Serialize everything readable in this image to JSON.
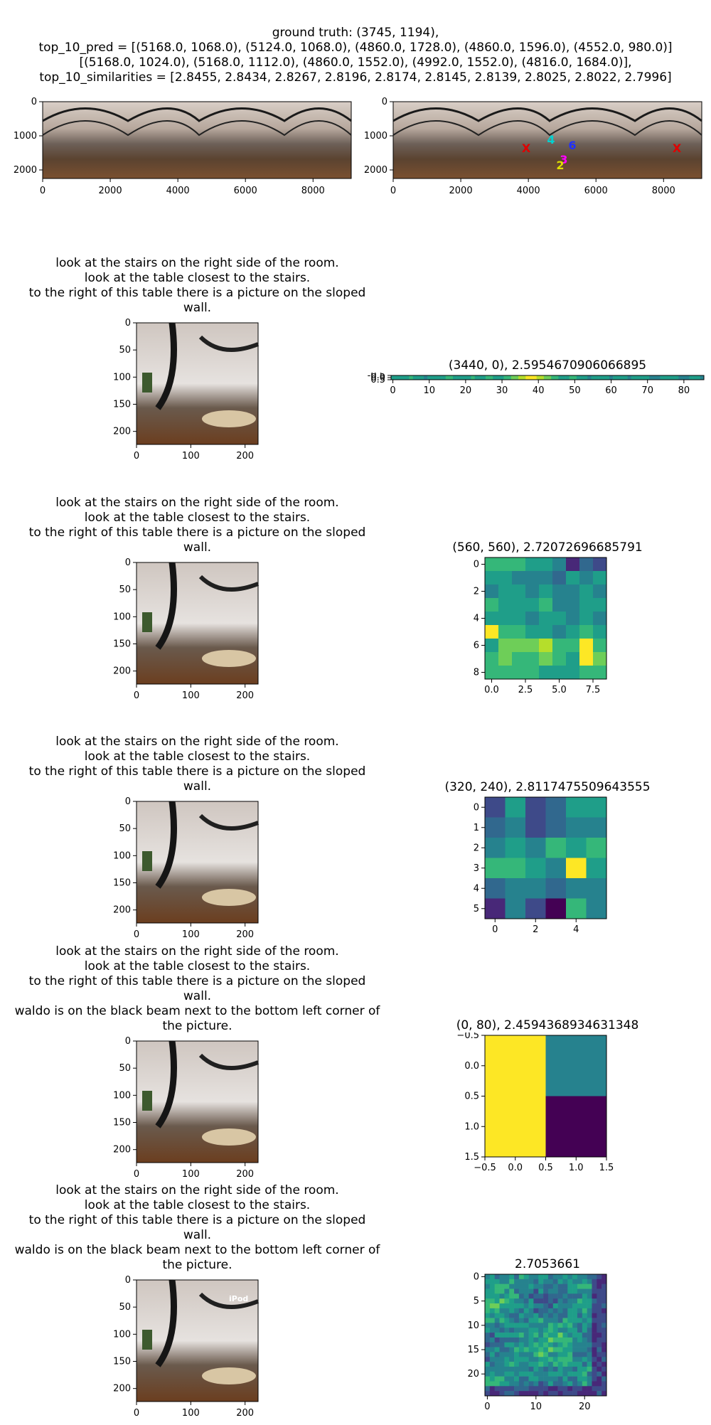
{
  "header": {
    "lines": [
      "ground truth: (3745, 1194),",
      "top_10_pred = [(5168.0, 1068.0), (5124.0, 1068.0), (4860.0, 1728.0), (4860.0, 1596.0), (4552.0, 980.0)]",
      "[(5168.0, 1024.0), (5168.0, 1112.0), (4860.0, 1552.0), (4992.0, 1552.0), (4816.0, 1684.0)],",
      "top_10_similarities = [2.8455, 2.8434, 2.8267, 2.8196, 2.8174, 2.8145, 2.8139, 2.8025, 2.8022, 2.7996]"
    ]
  },
  "panorama_axes": {
    "x_ticks": [
      "0",
      "2000",
      "4000",
      "6000",
      "8000"
    ],
    "y_ticks": [
      "0",
      "1000",
      "2000"
    ],
    "markers": [
      {
        "label": "X",
        "color": "#e00000"
      },
      {
        "label": "4",
        "color": "#00d0d0"
      },
      {
        "label": "6",
        "color": "#2030ff"
      },
      {
        "label": "3",
        "color": "#ff00ff"
      },
      {
        "label": "2",
        "color": "#e0e000"
      },
      {
        "label": "X",
        "color": "#e00000"
      }
    ]
  },
  "rows": [
    {
      "instructions": [
        "look at the stairs on the right side of the room.",
        "look at the table closest to the stairs.",
        "to the right of this table there is a picture on the sloped",
        "wall."
      ],
      "crop_ticks_x": [
        "0",
        "100",
        "200"
      ],
      "crop_ticks_y": [
        "0",
        "50",
        "100",
        "150",
        "200"
      ],
      "crop_label": ""
    },
    {
      "instructions": [
        "look at the stairs on the right side of the room.",
        "look at the table closest to the stairs.",
        "to the right of this table there is a picture on the sloped",
        "wall."
      ],
      "crop_ticks_x": [
        "0",
        "100",
        "200"
      ],
      "crop_ticks_y": [
        "0",
        "50",
        "100",
        "150",
        "200"
      ],
      "crop_label": ""
    },
    {
      "instructions": [
        "look at the stairs on the right side of the room.",
        "look at the table closest to the stairs.",
        "to the right of this table there is a picture on the sloped",
        "wall."
      ],
      "crop_ticks_x": [
        "0",
        "100",
        "200"
      ],
      "crop_ticks_y": [
        "0",
        "50",
        "100",
        "150",
        "200"
      ],
      "crop_label": ""
    },
    {
      "instructions": [
        "look at the stairs on the right side of the room.",
        "look at the table closest to the stairs.",
        "to the right of this table there is a picture on the sloped",
        "wall.",
        "waldo is on the black beam next to the bottom left corner of",
        "the picture."
      ],
      "crop_ticks_x": [
        "0",
        "100",
        "200"
      ],
      "crop_ticks_y": [
        "0",
        "50",
        "100",
        "150",
        "200"
      ],
      "crop_label": ""
    },
    {
      "instructions": [
        "look at the stairs on the right side of the room.",
        "look at the table closest to the stairs.",
        "to the right of this table there is a picture on the sloped",
        "wall.",
        "waldo is on the black beam next to the bottom left corner of",
        "the picture."
      ],
      "crop_ticks_x": [
        "0",
        "100",
        "200"
      ],
      "crop_ticks_y": [
        "0",
        "50",
        "100",
        "150",
        "200"
      ],
      "crop_label": "iPod"
    }
  ],
  "colors": {
    "viridis": [
      "#440154",
      "#482878",
      "#3e4a89",
      "#31688e",
      "#26828e",
      "#1f9e89",
      "#35b779",
      "#6ece58",
      "#b5de2b",
      "#fde725"
    ]
  },
  "chart_data": [
    {
      "type": "heatmap",
      "title": "(3440, 0), 2.5954670906066895",
      "x_ticks": [
        "0",
        "10",
        "20",
        "30",
        "40",
        "50",
        "60",
        "70",
        "80"
      ],
      "y_ticks": [
        "-0.5",
        "0.0",
        "0.5"
      ],
      "values": [
        [
          0.55,
          0.6,
          0.5,
          0.55,
          0.6,
          0.65,
          0.55,
          0.6,
          0.5,
          0.45,
          0.55,
          0.6,
          0.5,
          0.55,
          0.6,
          0.65,
          0.7,
          0.55,
          0.6,
          0.5,
          0.55,
          0.6,
          0.65,
          0.55,
          0.6,
          0.55,
          0.65,
          0.7,
          0.6,
          0.55,
          0.6,
          0.65,
          0.7,
          0.75,
          0.8,
          0.85,
          0.9,
          0.95,
          1.0,
          0.95,
          0.9,
          0.85,
          0.8,
          0.75,
          0.7,
          0.65,
          0.6,
          0.55,
          0.6,
          0.65,
          0.7,
          0.6,
          0.55,
          0.5,
          0.45,
          0.5,
          0.55,
          0.6,
          0.55,
          0.5,
          0.45,
          0.5,
          0.55,
          0.6,
          0.5,
          0.45,
          0.5,
          0.55,
          0.6,
          0.55,
          0.5,
          0.45,
          0.4,
          0.45,
          0.5,
          0.55,
          0.6,
          0.55,
          0.5,
          0.45,
          0.4,
          0.45,
          0.5,
          0.55,
          0.5,
          0.45
        ]
      ]
    },
    {
      "type": "heatmap",
      "title": "(560, 560), 2.72072696685791",
      "x_ticks": [
        "0.0",
        "2.5",
        "5.0",
        "7.5"
      ],
      "y_ticks": [
        "0",
        "2",
        "4",
        "6",
        "8"
      ],
      "values": [
        [
          0.7,
          0.65,
          0.7,
          0.55,
          0.5,
          0.4,
          0.1,
          0.3,
          0.2
        ],
        [
          0.5,
          0.5,
          0.4,
          0.45,
          0.45,
          0.3,
          0.6,
          0.4,
          0.55
        ],
        [
          0.45,
          0.5,
          0.55,
          0.45,
          0.5,
          0.4,
          0.4,
          0.5,
          0.45
        ],
        [
          0.65,
          0.5,
          0.6,
          0.55,
          0.65,
          0.45,
          0.45,
          0.6,
          0.5
        ],
        [
          0.6,
          0.55,
          0.5,
          0.45,
          0.55,
          0.55,
          0.45,
          0.55,
          0.45
        ],
        [
          1.0,
          0.7,
          0.65,
          0.6,
          0.5,
          0.45,
          0.6,
          0.65,
          0.55
        ],
        [
          0.6,
          0.75,
          0.8,
          0.75,
          0.85,
          0.65,
          0.7,
          1.0,
          0.7
        ],
        [
          0.65,
          0.75,
          0.7,
          0.7,
          0.8,
          0.65,
          0.6,
          0.95,
          0.8
        ],
        [
          0.7,
          0.7,
          0.7,
          0.65,
          0.6,
          0.6,
          0.55,
          0.65,
          0.65
        ]
      ]
    },
    {
      "type": "heatmap",
      "title": "(320, 240), 2.8117475509643555",
      "x_ticks": [
        "0",
        "2",
        "4"
      ],
      "y_ticks": [
        "0",
        "1",
        "2",
        "3",
        "4",
        "5"
      ],
      "values": [
        [
          0.2,
          0.55,
          0.2,
          0.3,
          0.6,
          0.5
        ],
        [
          0.35,
          0.45,
          0.2,
          0.35,
          0.4,
          0.4
        ],
        [
          0.4,
          0.6,
          0.45,
          0.7,
          0.5,
          0.7
        ],
        [
          0.7,
          0.7,
          0.55,
          0.4,
          1.0,
          0.5
        ],
        [
          0.3,
          0.4,
          0.4,
          0.35,
          0.4,
          0.45
        ],
        [
          0.1,
          0.4,
          0.25,
          0.0,
          0.7,
          0.45
        ]
      ]
    },
    {
      "type": "heatmap",
      "title": "(0, 80), 2.4594368934631348",
      "x_ticks": [
        "−0.5",
        "0.0",
        "0.5",
        "1.0",
        "1.5"
      ],
      "y_ticks": [
        "−0.5",
        "0.0",
        "0.5",
        "1.0",
        "1.5"
      ],
      "values": [
        [
          1.0,
          0.45
        ],
        [
          1.0,
          0.0
        ]
      ]
    },
    {
      "type": "heatmap",
      "title": "2.7053661",
      "x_ticks": [
        "0",
        "10",
        "20"
      ],
      "y_ticks": [
        "0",
        "5",
        "10",
        "15",
        "20"
      ],
      "size": 25
    }
  ]
}
